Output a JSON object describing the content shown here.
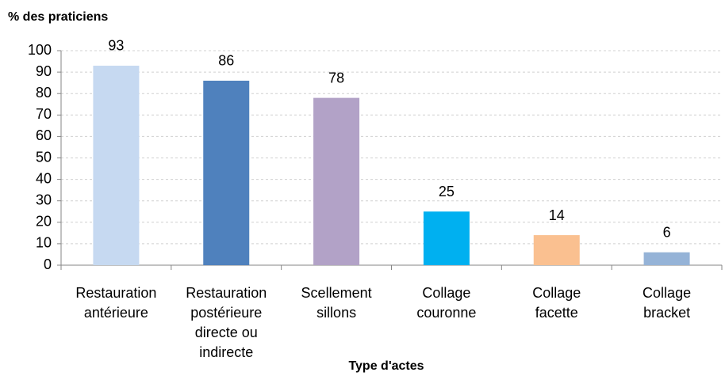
{
  "chart_data": {
    "type": "bar",
    "title": "% des praticiens",
    "x_label": "Type d'actes",
    "categories": [
      [
        "Restauration",
        "antérieure"
      ],
      [
        "Restauration",
        "postérieure",
        "directe ou",
        "indirecte"
      ],
      [
        "Scellement",
        "sillons"
      ],
      [
        "Collage",
        "couronne"
      ],
      [
        "Collage",
        "facette"
      ],
      [
        "Collage",
        "bracket"
      ]
    ],
    "values": [
      93,
      86,
      78,
      25,
      14,
      6
    ],
    "colors": [
      "#c6d9f1",
      "#4f81bd",
      "#b2a2c7",
      "#00b0f0",
      "#fac090",
      "#95b3d7"
    ],
    "ylim": [
      0,
      100
    ],
    "yticks": [
      0,
      10,
      20,
      30,
      40,
      50,
      60,
      70,
      80,
      90,
      100
    ],
    "grid": true
  }
}
